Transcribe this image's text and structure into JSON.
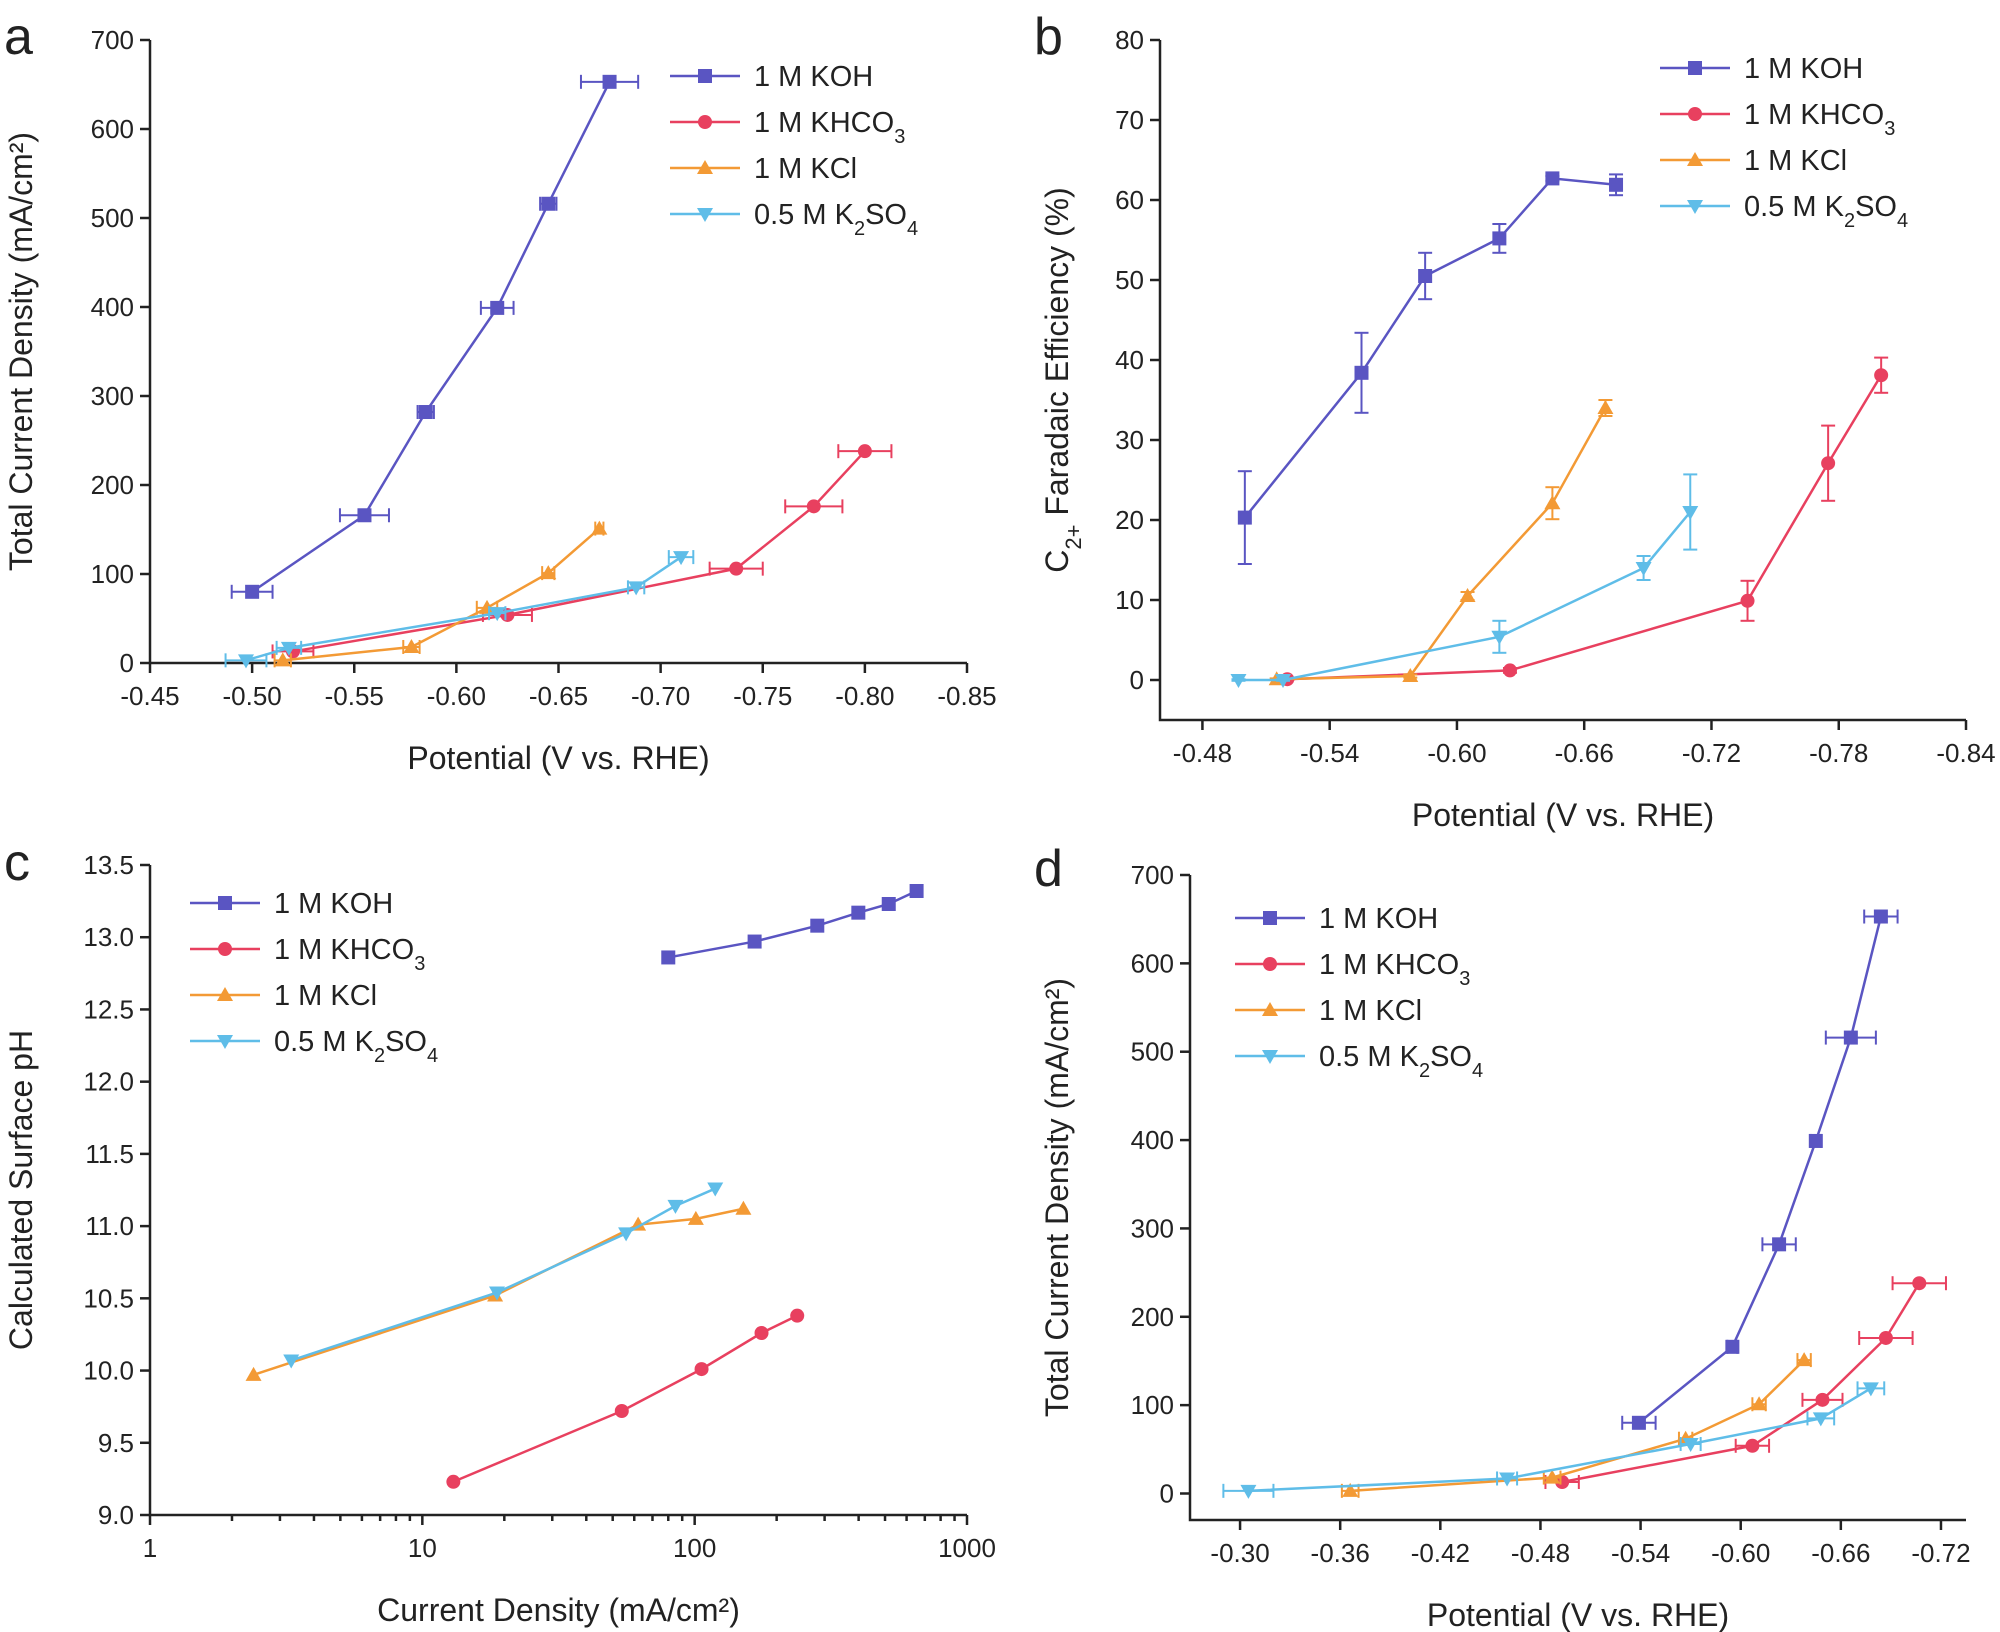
{
  "colors": {
    "koh": "#5a55c2",
    "khco3": "#e8405f",
    "kcl": "#f39a35",
    "k2so4": "#5fbde8"
  },
  "legend": [
    {
      "key": "koh",
      "main": "1 M KOH",
      "sub": "",
      "tail": "",
      "marker": "square"
    },
    {
      "key": "khco3",
      "main": "1 M KHCO",
      "sub": "3",
      "tail": "",
      "marker": "circle"
    },
    {
      "key": "kcl",
      "main": "1 M KCl",
      "sub": "",
      "tail": "",
      "marker": "triangle-up"
    },
    {
      "key": "k2so4",
      "main": "0.5 M K",
      "sub": "2",
      "tail": "SO",
      "sub2": "4",
      "marker": "triangle-down"
    }
  ],
  "chart_data": [
    {
      "panel": "a",
      "type": "line",
      "xlabel": "Potential (V vs. RHE)",
      "ylabel": "Total Current Density (mA/cm²)",
      "xlim": [
        -0.45,
        -0.85
      ],
      "ylim": [
        0,
        700
      ],
      "xticks": [
        -0.45,
        -0.5,
        -0.55,
        -0.6,
        -0.65,
        -0.7,
        -0.75,
        -0.8,
        -0.85
      ],
      "xtick_labels": [
        "-0.45",
        "-0.50",
        "-0.55",
        "-0.60",
        "-0.65",
        "-0.70",
        "-0.75",
        "-0.80",
        "-0.85"
      ],
      "yticks": [
        0,
        100,
        200,
        300,
        400,
        500,
        600,
        700
      ],
      "ytick_labels": [
        "0",
        "100",
        "200",
        "300",
        "400",
        "500",
        "600",
        "700"
      ],
      "series": [
        {
          "key": "koh",
          "x": [
            -0.5,
            -0.555,
            -0.585,
            -0.62,
            -0.645,
            -0.675
          ],
          "y": [
            80,
            166,
            282,
            399,
            516,
            653
          ],
          "xerr": [
            0.01,
            0.012,
            0.004,
            0.008,
            0.004,
            0.014
          ]
        },
        {
          "key": "khco3",
          "x": [
            -0.52,
            -0.625,
            -0.737,
            -0.775,
            -0.8
          ],
          "y": [
            13,
            54,
            106,
            176,
            238
          ],
          "xerr": [
            0.01,
            0.012,
            0.013,
            0.014,
            0.013
          ]
        },
        {
          "key": "kcl",
          "x": [
            -0.515,
            -0.578,
            -0.615,
            -0.645,
            -0.67
          ],
          "y": [
            3,
            18,
            62,
            101,
            151
          ],
          "xerr": [
            0.004,
            0.004,
            0.005,
            0.003,
            0.002
          ]
        },
        {
          "key": "k2so4",
          "x": [
            -0.497,
            -0.518,
            -0.62,
            -0.688,
            -0.71
          ],
          "y": [
            3,
            17,
            56,
            85,
            119
          ],
          "xerr": [
            0.01,
            0.006,
            0.004,
            0.004,
            0.006
          ]
        }
      ]
    },
    {
      "panel": "b",
      "type": "line",
      "xlabel": "Potential (V vs. RHE)",
      "ylabel": "Faradaic Efficiency (%)",
      "ylabel_prefix": "C",
      "ylabel_sub": "2+",
      "xlim": [
        -0.46,
        -0.84
      ],
      "ylim": [
        -5,
        80
      ],
      "xticks": [
        -0.48,
        -0.54,
        -0.6,
        -0.66,
        -0.72,
        -0.78,
        -0.84
      ],
      "xtick_labels": [
        "-0.48",
        "-0.54",
        "-0.60",
        "-0.66",
        "-0.72",
        "-0.78",
        "-0.84"
      ],
      "yticks": [
        0,
        10,
        20,
        30,
        40,
        50,
        60,
        70,
        80
      ],
      "ytick_labels": [
        "0",
        "10",
        "20",
        "30",
        "40",
        "50",
        "60",
        "70",
        "80"
      ],
      "series": [
        {
          "key": "koh",
          "x": [
            -0.5,
            -0.555,
            -0.585,
            -0.62,
            -0.645,
            -0.675
          ],
          "y": [
            20.3,
            38.4,
            50.5,
            55.2,
            62.7,
            61.9
          ],
          "yerr": [
            5.8,
            5.0,
            2.9,
            1.8,
            0.3,
            1.3
          ]
        },
        {
          "key": "khco3",
          "x": [
            -0.52,
            -0.625,
            -0.737,
            -0.775,
            -0.8
          ],
          "y": [
            0.1,
            1.2,
            9.9,
            27.1,
            38.1
          ],
          "yerr": [
            0.1,
            0.3,
            2.5,
            4.7,
            2.2
          ]
        },
        {
          "key": "kcl",
          "x": [
            -0.515,
            -0.578,
            -0.605,
            -0.645,
            -0.67
          ],
          "y": [
            0.1,
            0.5,
            10.5,
            22.1,
            34.0
          ],
          "yerr": [
            0.1,
            0.2,
            0.5,
            2.0,
            1.0
          ]
        },
        {
          "key": "k2so4",
          "x": [
            -0.497,
            -0.518,
            -0.62,
            -0.688,
            -0.71
          ],
          "y": [
            0.0,
            0.0,
            5.4,
            14.0,
            21.0
          ],
          "yerr": [
            0.1,
            0.1,
            2.0,
            1.5,
            4.7
          ]
        }
      ]
    },
    {
      "panel": "c",
      "type": "line",
      "xscale": "log",
      "xlabel": "Current Density (mA/cm²)",
      "ylabel": "Calculated Surface pH",
      "xlim": [
        1,
        1000
      ],
      "ylim": [
        9.0,
        13.5
      ],
      "xticks": [
        1,
        10,
        100,
        1000
      ],
      "xtick_labels": [
        "1",
        "10",
        "100",
        "1000"
      ],
      "yticks": [
        9.0,
        9.5,
        10.0,
        10.5,
        11.0,
        11.5,
        12.0,
        12.5,
        13.0,
        13.5
      ],
      "ytick_labels": [
        "9.0",
        "9.5",
        "10.0",
        "10.5",
        "11.0",
        "11.5",
        "12.0",
        "12.5",
        "13.0",
        "13.5"
      ],
      "series": [
        {
          "key": "koh",
          "x": [
            80,
            166,
            282,
            399,
            516,
            653
          ],
          "y": [
            12.86,
            12.97,
            13.08,
            13.17,
            13.23,
            13.32
          ]
        },
        {
          "key": "khco3",
          "x": [
            13,
            54,
            106,
            176,
            238
          ],
          "y": [
            9.23,
            9.72,
            10.01,
            10.26,
            10.38
          ]
        },
        {
          "key": "kcl",
          "x": [
            2.4,
            18.5,
            62,
            101,
            151
          ],
          "y": [
            9.97,
            10.52,
            11.01,
            11.05,
            11.12
          ]
        },
        {
          "key": "k2so4",
          "x": [
            3.3,
            18.8,
            56,
            85,
            119
          ],
          "y": [
            10.07,
            10.54,
            10.95,
            11.14,
            11.26
          ]
        }
      ]
    },
    {
      "panel": "d",
      "type": "line",
      "xlabel": "Potential (V vs. RHE)",
      "ylabel": "Total Current Density (mA/cm²)",
      "xlim": [
        -0.27,
        -0.735
      ],
      "ylim": [
        -30,
        700
      ],
      "xticks": [
        -0.3,
        -0.36,
        -0.42,
        -0.48,
        -0.54,
        -0.6,
        -0.66,
        -0.72
      ],
      "xtick_labels": [
        "-0.30",
        "-0.36",
        "-0.42",
        "-0.48",
        "-0.54",
        "-0.60",
        "-0.66",
        "-0.72"
      ],
      "yticks": [
        0,
        100,
        200,
        300,
        400,
        500,
        600,
        700
      ],
      "ytick_labels": [
        "0",
        "100",
        "200",
        "300",
        "400",
        "500",
        "600",
        "700"
      ],
      "series": [
        {
          "key": "koh",
          "x": [
            -0.539,
            -0.595,
            -0.623,
            -0.645,
            -0.666,
            -0.684
          ],
          "y": [
            80,
            166,
            282,
            399,
            516,
            653
          ],
          "xerr": [
            0.01,
            0.003,
            0.01,
            0.003,
            0.015,
            0.01
          ]
        },
        {
          "key": "khco3",
          "x": [
            -0.493,
            -0.607,
            -0.649,
            -0.687,
            -0.707
          ],
          "y": [
            13,
            54,
            106,
            176,
            238
          ],
          "xerr": [
            0.01,
            0.01,
            0.012,
            0.016,
            0.016
          ]
        },
        {
          "key": "kcl",
          "x": [
            -0.366,
            -0.487,
            -0.567,
            -0.611,
            -0.638
          ],
          "y": [
            3,
            18,
            62,
            101,
            151
          ],
          "xerr": [
            0.005,
            0.005,
            0.004,
            0.004,
            0.004
          ]
        },
        {
          "key": "k2so4",
          "x": [
            -0.305,
            -0.46,
            -0.57,
            -0.648,
            -0.678
          ],
          "y": [
            3,
            17,
            56,
            85,
            119
          ],
          "xerr": [
            0.015,
            0.006,
            0.006,
            0.008,
            0.008
          ]
        }
      ]
    }
  ],
  "panels": {
    "a": "a",
    "b": "b",
    "c": "c",
    "d": "d"
  }
}
